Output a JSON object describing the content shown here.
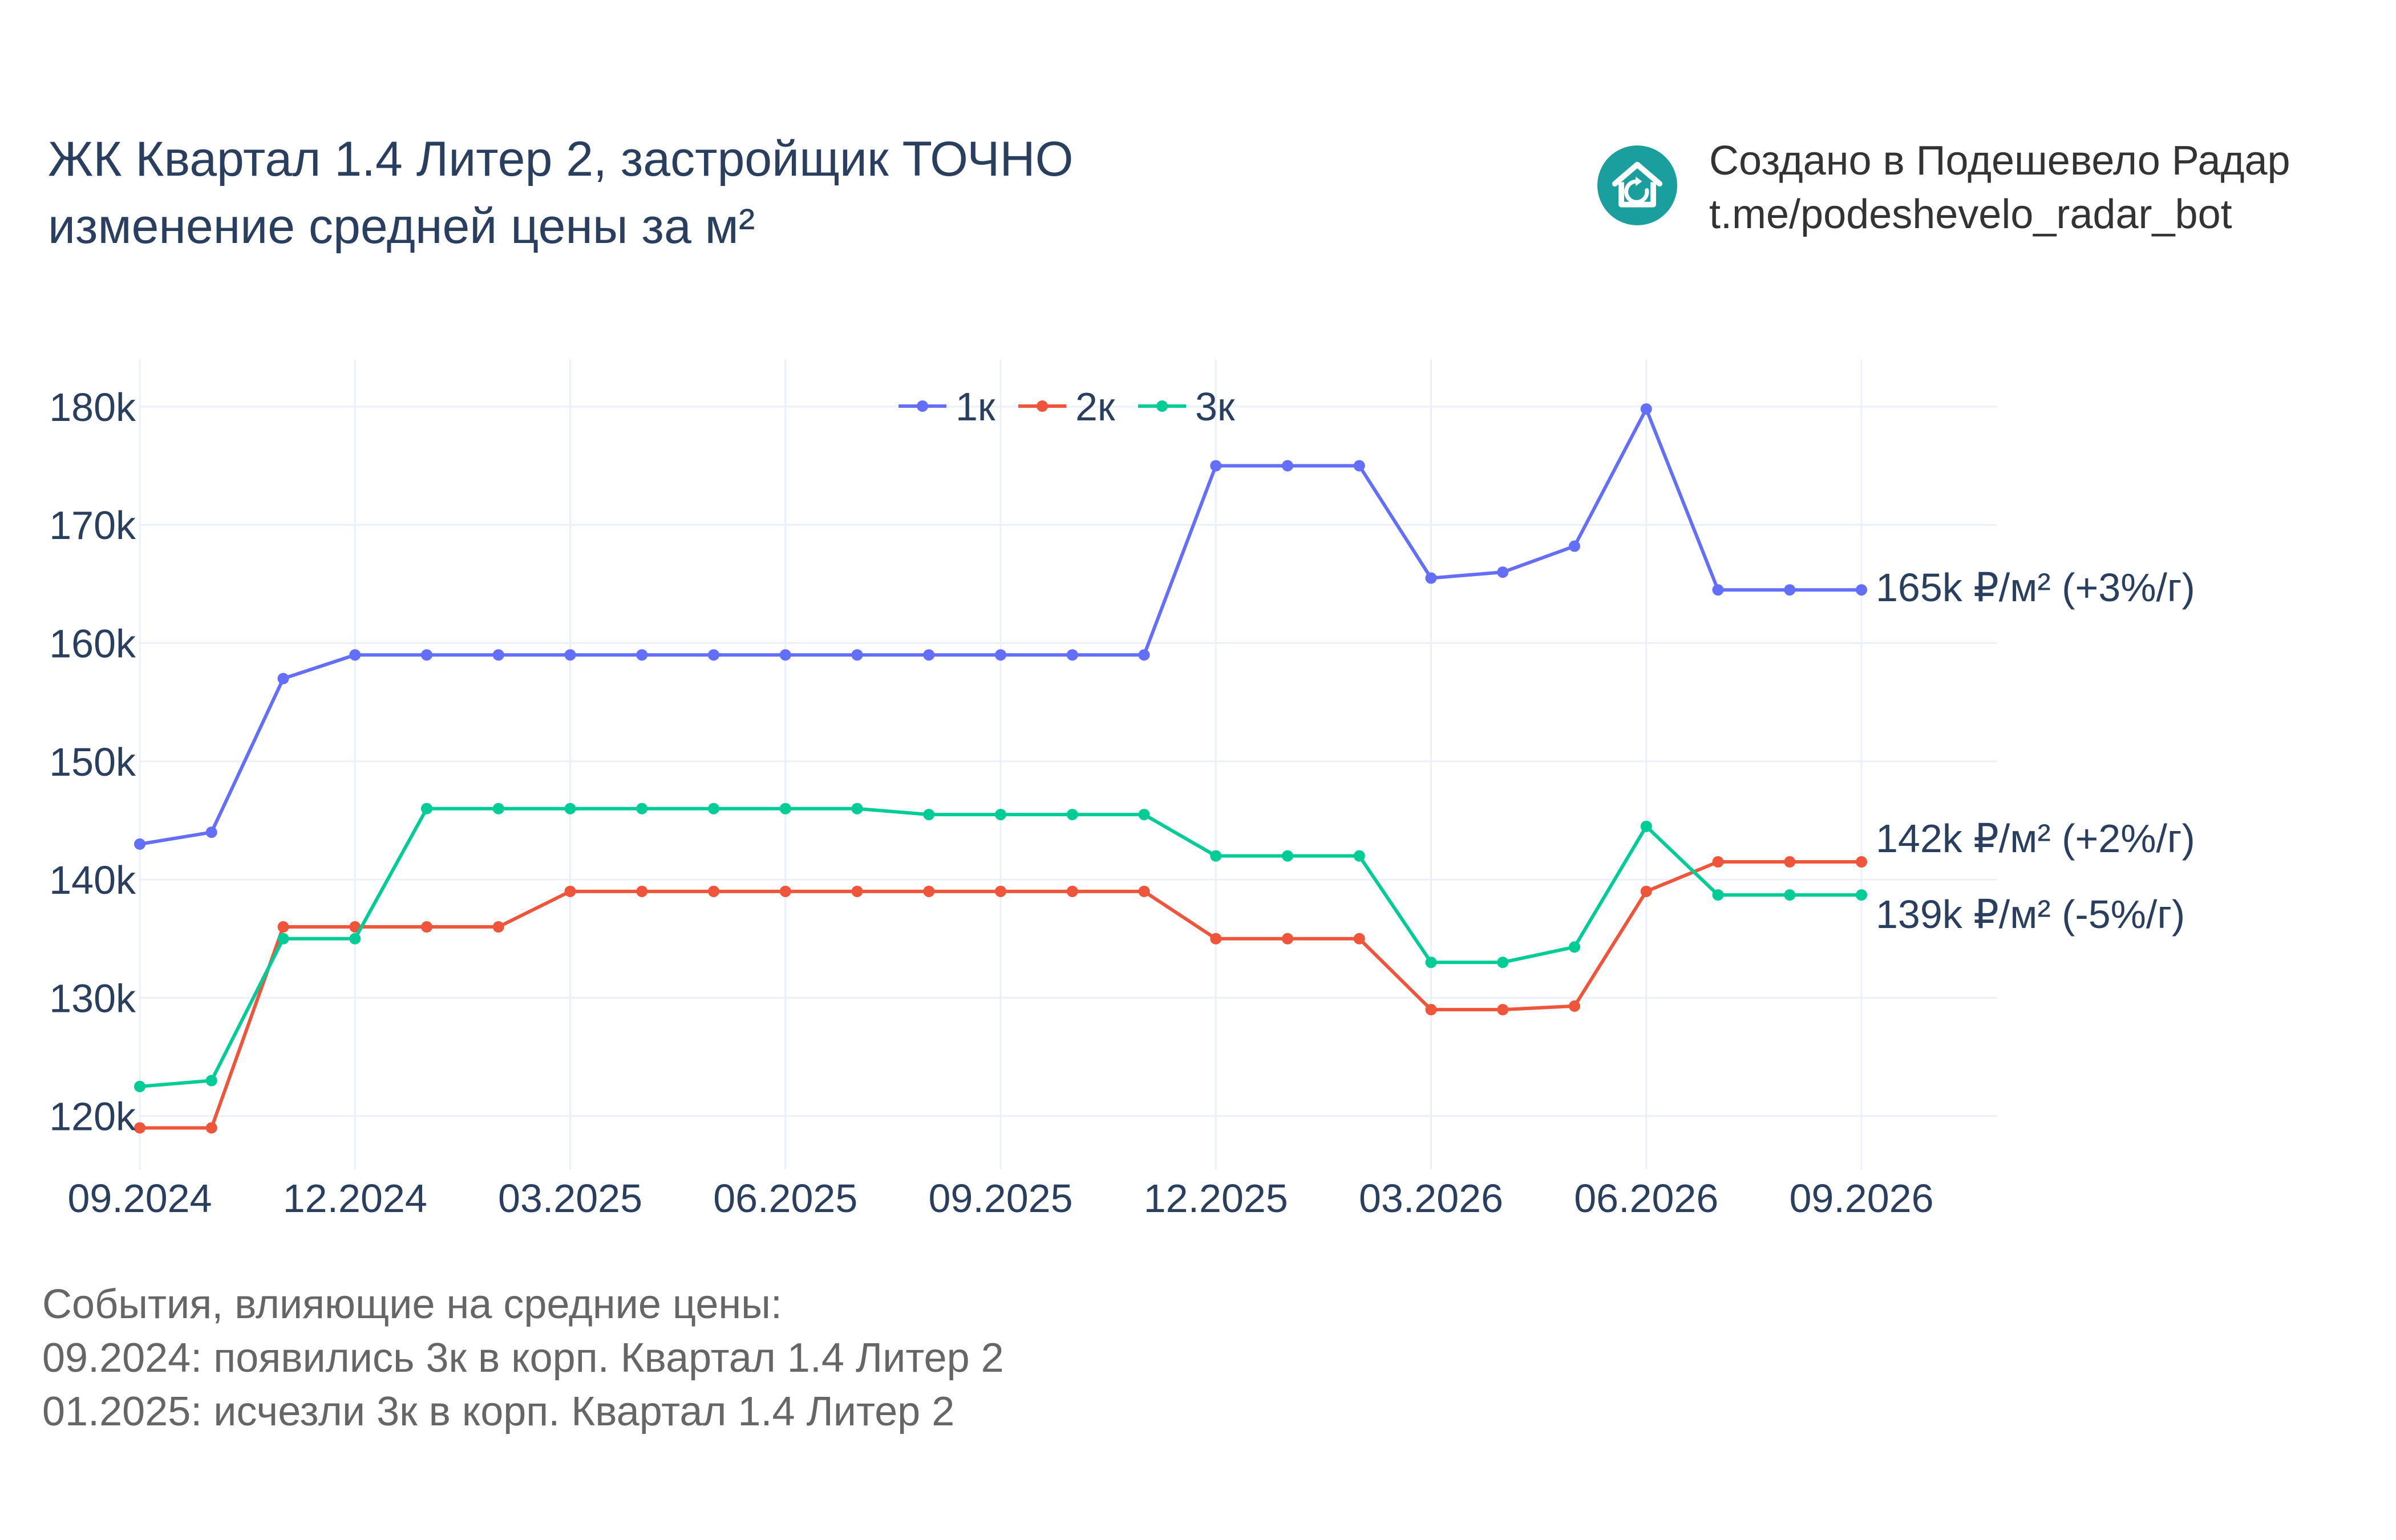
{
  "header": {
    "title_line1": "ЖК Квартал 1.4 Литер 2, застройщик ТОЧНО",
    "title_line2": "изменение средней цены за м²"
  },
  "branding": {
    "line1": "Создано в Подешевело Радар",
    "line2": "t.me/podeshevelo_radar_bot",
    "logo_icon": "house-refresh-icon",
    "logo_color": "#1a9e9e"
  },
  "events": {
    "heading": "События, влияющие на средние цены:",
    "items": [
      "09.2024: появились 3к в корп. Квартал 1.4 Литер 2",
      "01.2025: исчезли 3к в корп. Квартал 1.4 Литер 2"
    ]
  },
  "chart_data": {
    "type": "line",
    "x": [
      "09.2024",
      "10.2024",
      "11.2024",
      "12.2024",
      "01.2025",
      "02.2025",
      "03.2025",
      "04.2025",
      "05.2025",
      "06.2025",
      "07.2025",
      "08.2025",
      "09.2025",
      "10.2025",
      "11.2025",
      "12.2025",
      "01.2026",
      "02.2026",
      "03.2026",
      "04.2026",
      "05.2026",
      "06.2026",
      "07.2026",
      "08.2026",
      "09.2026"
    ],
    "xticks": [
      "09.2024",
      "12.2024",
      "03.2025",
      "06.2025",
      "09.2025",
      "12.2025",
      "03.2026",
      "06.2026",
      "09.2026"
    ],
    "yticks": [
      "120k",
      "130k",
      "140k",
      "150k",
      "160k",
      "170k",
      "180k"
    ],
    "ytick_values": [
      120000,
      130000,
      140000,
      150000,
      160000,
      170000,
      180000
    ],
    "ylim": [
      115500,
      184000
    ],
    "grid": true,
    "legend_position": "top-center",
    "series": [
      {
        "name": "1к",
        "color": "#636efa",
        "values": [
          143000,
          144000,
          157000,
          159000,
          159000,
          159000,
          159000,
          159000,
          159000,
          159000,
          159000,
          159000,
          159000,
          159000,
          159000,
          175000,
          175000,
          175000,
          165500,
          166000,
          168200,
          179800,
          164500,
          164500,
          164500
        ],
        "end_label": "165k ₽/м² (+3%/г)"
      },
      {
        "name": "2к",
        "color": "#ef553b",
        "values": [
          119000,
          119000,
          136000,
          136000,
          136000,
          136000,
          139000,
          139000,
          139000,
          139000,
          139000,
          139000,
          139000,
          139000,
          139000,
          135000,
          135000,
          135000,
          129000,
          129000,
          129300,
          139000,
          141500,
          141500,
          141500
        ],
        "end_label": "142k ₽/м² (+2%/г)"
      },
      {
        "name": "3к",
        "color": "#00cc96",
        "values": [
          122500,
          123000,
          135000,
          135000,
          146000,
          146000,
          146000,
          146000,
          146000,
          146000,
          146000,
          145500,
          145500,
          145500,
          145500,
          142000,
          142000,
          142000,
          133000,
          133000,
          134300,
          144500,
          138700,
          138700,
          138700
        ],
        "end_label": "139k ₽/м² (-5%/г)"
      }
    ]
  }
}
